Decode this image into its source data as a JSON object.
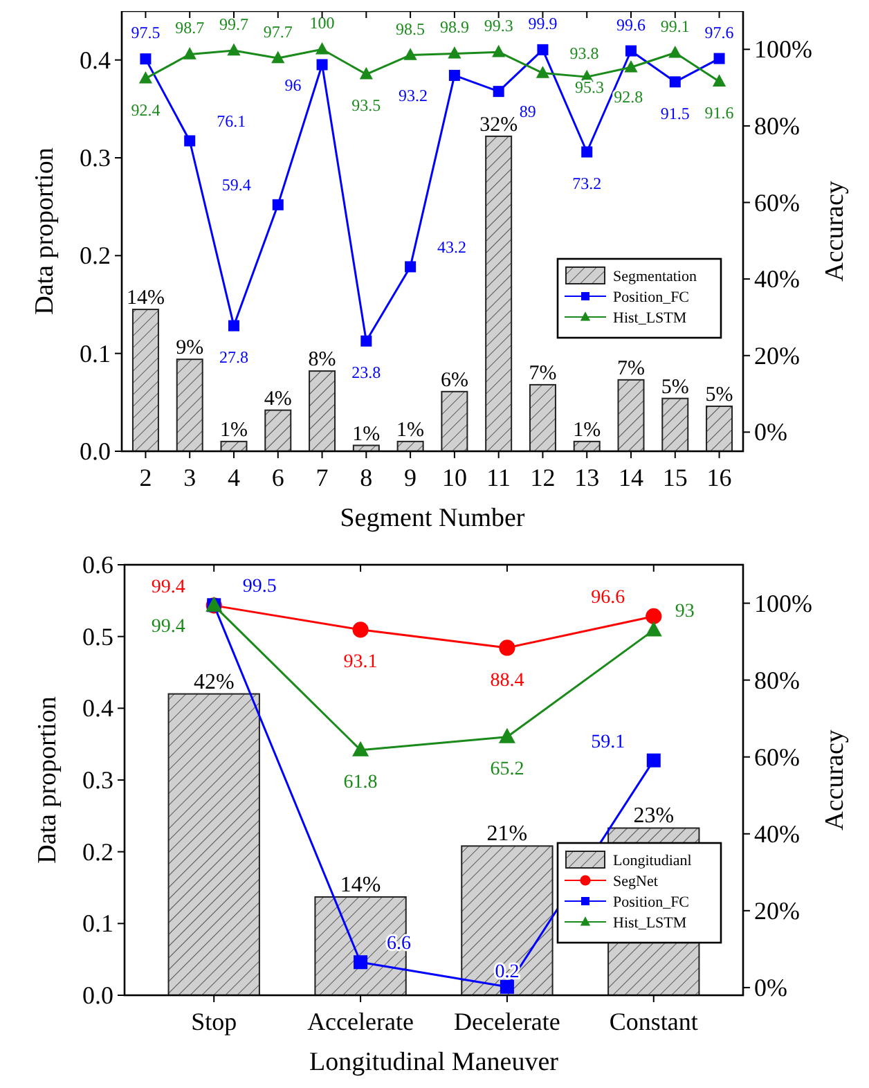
{
  "chart_data": [
    {
      "type": "bar",
      "xlabel": "Segment Number",
      "ylabel": "Data proportion",
      "y2label": "Accuracy",
      "categories": [
        "2",
        "3",
        "4",
        "6",
        "7",
        "8",
        "9",
        "10",
        "11",
        "12",
        "13",
        "14",
        "15",
        "16"
      ],
      "ylim": [
        0,
        0.45
      ],
      "yticks": [
        {
          "value": 0,
          "label": "0.0"
        },
        0.1,
        0.2,
        0.3,
        0.4
      ],
      "y2lim": [
        -5,
        110
      ],
      "y2ticks": [
        {
          "value": 0,
          "label": "0%"
        },
        {
          "value": 20,
          "label": "20%"
        },
        {
          "value": 40,
          "label": "40%"
        },
        {
          "value": 60,
          "label": "60%"
        },
        {
          "value": 80,
          "label": "80%"
        },
        {
          "value": 100,
          "label": "100%"
        }
      ],
      "legend": "right",
      "grid": false,
      "series": [
        {
          "name": "Segmentation",
          "color": "#d0d0d0",
          "values": [
            0.145,
            0.094,
            0.01,
            0.042,
            0.082,
            0.006,
            0.01,
            0.061,
            0.322,
            0.068,
            0.01,
            0.073,
            0.054,
            0.046
          ],
          "value_labels": [
            "14%",
            "9%",
            "1%",
            "4%",
            "8%",
            "1%",
            "1%",
            "6%",
            "32%",
            "7%",
            "1%",
            "7%",
            "5%",
            "5%"
          ]
        },
        {
          "name": "Position_FC",
          "type": "line",
          "axis": "y2",
          "marker": "square",
          "color": "#0000ff",
          "values": [
            97.5,
            76.1,
            27.8,
            59.4,
            96,
            23.8,
            43.2,
            93.2,
            89,
            99.9,
            73.2,
            99.6,
            91.5,
            97.6
          ],
          "value_labels": [
            "97.5",
            "76.1",
            "27.8",
            "59.4",
            "96",
            "23.8",
            "43.2",
            "93.2",
            "89",
            "99.9",
            "73.2",
            "99.6",
            "91.5",
            "97.6"
          ]
        },
        {
          "name": "Hist_LSTM",
          "type": "line",
          "axis": "y2",
          "marker": "triangle",
          "color": "#1a8a1a",
          "values": [
            92.4,
            98.7,
            99.7,
            97.7,
            100,
            93.5,
            98.5,
            98.9,
            99.3,
            93.8,
            92.8,
            95.3,
            99.1,
            91.6
          ],
          "value_labels": [
            "92.4",
            "98.7",
            "99.7",
            "97.7",
            "100",
            "93.5",
            "98.5",
            "98.9",
            "99.3",
            "93.8",
            "92.8",
            "95.3",
            "99.1",
            "91.6"
          ]
        }
      ]
    },
    {
      "type": "bar",
      "xlabel": "Longitudinal Maneuver",
      "ylabel": "Data proportion",
      "y2label": "Accuracy",
      "categories": [
        "Stop",
        "Accelerate",
        "Decelerate",
        "Constant"
      ],
      "ylim": [
        0,
        0.6
      ],
      "yticks": [
        {
          "value": 0,
          "label": "0.0"
        },
        0.1,
        0.2,
        0.3,
        0.4,
        0.5,
        0.6
      ],
      "y2lim": [
        -2,
        110
      ],
      "y2ticks": [
        {
          "value": 0,
          "label": "0%"
        },
        {
          "value": 20,
          "label": "20%"
        },
        {
          "value": 40,
          "label": "40%"
        },
        {
          "value": 60,
          "label": "60%"
        },
        {
          "value": 80,
          "label": "80%"
        },
        {
          "value": 100,
          "label": "100%"
        }
      ],
      "legend": "bottom right",
      "grid": false,
      "series": [
        {
          "name": "Longitudianl",
          "color": "#d0d0d0",
          "values": [
            0.42,
            0.137,
            0.208,
            0.233
          ],
          "value_labels": [
            "42%",
            "14%",
            "21%",
            "23%"
          ]
        },
        {
          "name": "SegNet",
          "type": "line",
          "axis": "y2",
          "marker": "circle",
          "color": "#ff0000",
          "values": [
            99.4,
            93.1,
            88.4,
            96.6
          ],
          "value_labels": [
            "99.4",
            "93.1",
            "88.4",
            "96.6"
          ]
        },
        {
          "name": "Position_FC",
          "type": "line",
          "axis": "y2",
          "marker": "square",
          "color": "#0000ff",
          "values": [
            99.5,
            6.6,
            0.2,
            59.1
          ],
          "value_labels": [
            "99.5",
            "6.6",
            "0.2",
            "59.1"
          ]
        },
        {
          "name": "Hist_LSTM",
          "type": "line",
          "axis": "y2",
          "marker": "triangle",
          "color": "#1a8a1a",
          "values": [
            99.4,
            61.8,
            65.2,
            93
          ],
          "value_labels": [
            "99.4",
            "61.8",
            "65.2",
            "93"
          ]
        }
      ]
    }
  ]
}
